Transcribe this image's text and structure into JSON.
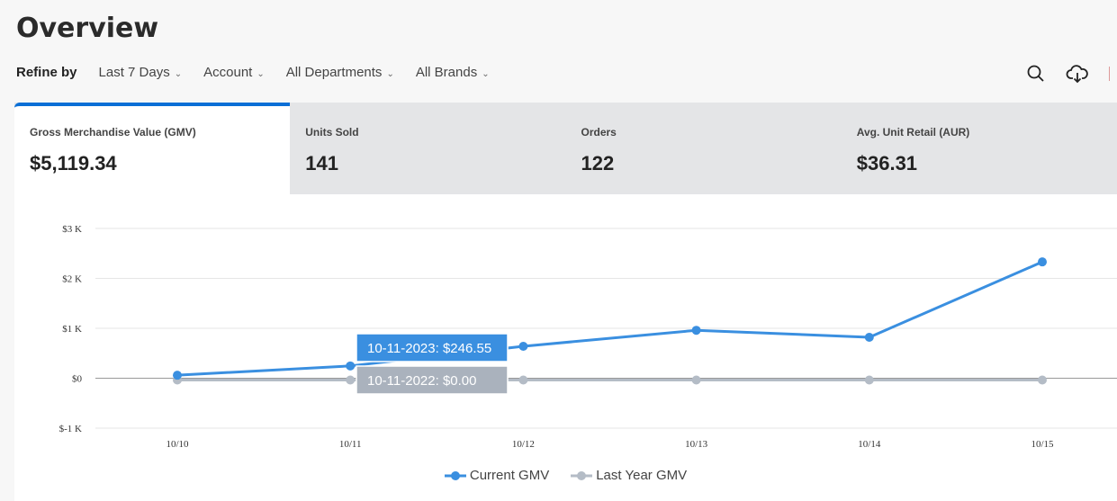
{
  "header": {
    "title": "Overview",
    "refine_label": "Refine by",
    "filters": [
      "Last 7 Days",
      "Account",
      "All Departments",
      "All Brands"
    ]
  },
  "icons": [
    "search-icon",
    "cloud-download-icon"
  ],
  "metrics": [
    {
      "label": "Gross Merchandise Value (GMV)",
      "value": "$5,119.34",
      "active": true
    },
    {
      "label": "Units Sold",
      "value": "141"
    },
    {
      "label": "Orders",
      "value": "122"
    },
    {
      "label": "Avg. Unit Retail (AUR)",
      "value": "$36.31"
    }
  ],
  "chart_data": {
    "type": "line",
    "categories": [
      "10/10",
      "10/11",
      "10/12",
      "10/13",
      "10/14",
      "10/15"
    ],
    "y_ticks": [
      "$3 K",
      "$2 K",
      "$1 K",
      "$0",
      "$-1 K"
    ],
    "y_tick_values": [
      3000,
      2000,
      1000,
      0,
      -1000
    ],
    "ylim": [
      -1000,
      3000
    ],
    "series": [
      {
        "name": "Current GMV",
        "color": "#3a8fe0",
        "values": [
          60,
          246.55,
          640,
          960,
          820,
          2330
        ]
      },
      {
        "name": "Last Year GMV",
        "color": "#b4bcc6",
        "values": [
          0,
          0,
          0,
          0,
          0,
          0
        ]
      }
    ],
    "tooltips": [
      "10-11-2023: $246.55",
      "10-11-2022: $0.00"
    ]
  }
}
